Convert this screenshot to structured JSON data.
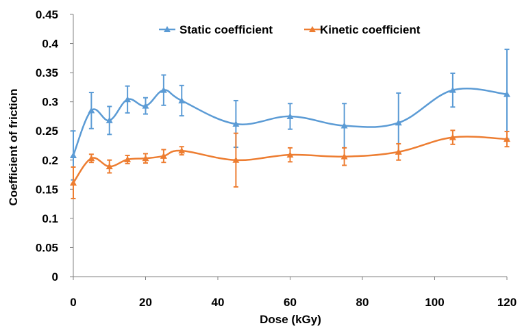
{
  "chart_data": {
    "type": "line",
    "title": "",
    "xlabel": "Dose (kGy)",
    "ylabel": "Coefficient of  friction",
    "xlim": [
      0,
      120
    ],
    "ylim": [
      0,
      0.45
    ],
    "x_ticks": [
      0,
      20,
      40,
      60,
      80,
      100,
      120
    ],
    "y_ticks": [
      0,
      0.05,
      0.1,
      0.15,
      0.2,
      0.25,
      0.3,
      0.35,
      0.4,
      0.45
    ],
    "x_tick_labels": [
      "0",
      "20",
      "40",
      "60",
      "80",
      "100",
      "120"
    ],
    "y_tick_labels": [
      "0",
      "0.05",
      "0.1",
      "0.15",
      "0.2",
      "0.25",
      "0.3",
      "0.35",
      "0.4",
      "0.45"
    ],
    "grid": false,
    "legend_position": "top",
    "smooth": true,
    "x": [
      0,
      5,
      10,
      15,
      20,
      25,
      30,
      45,
      60,
      75,
      90,
      105,
      120
    ],
    "series": [
      {
        "name": "Static coefficient",
        "color": "#5b9bd5",
        "marker": "triangle",
        "values": [
          0.208,
          0.285,
          0.268,
          0.304,
          0.293,
          0.32,
          0.302,
          0.262,
          0.275,
          0.259,
          0.264,
          0.32,
          0.313
        ],
        "error": [
          0.042,
          0.031,
          0.024,
          0.023,
          0.014,
          0.026,
          0.026,
          0.04,
          0.022,
          0.038,
          0.051,
          0.029,
          0.077
        ]
      },
      {
        "name": "Kinetic coefficient",
        "color": "#ed7d31",
        "marker": "triangle",
        "values": [
          0.161,
          0.203,
          0.189,
          0.201,
          0.203,
          0.207,
          0.216,
          0.2,
          0.209,
          0.206,
          0.214,
          0.239,
          0.236
        ],
        "error": [
          0.027,
          0.007,
          0.011,
          0.007,
          0.008,
          0.011,
          0.007,
          0.046,
          0.012,
          0.015,
          0.014,
          0.012,
          0.013
        ]
      }
    ]
  }
}
